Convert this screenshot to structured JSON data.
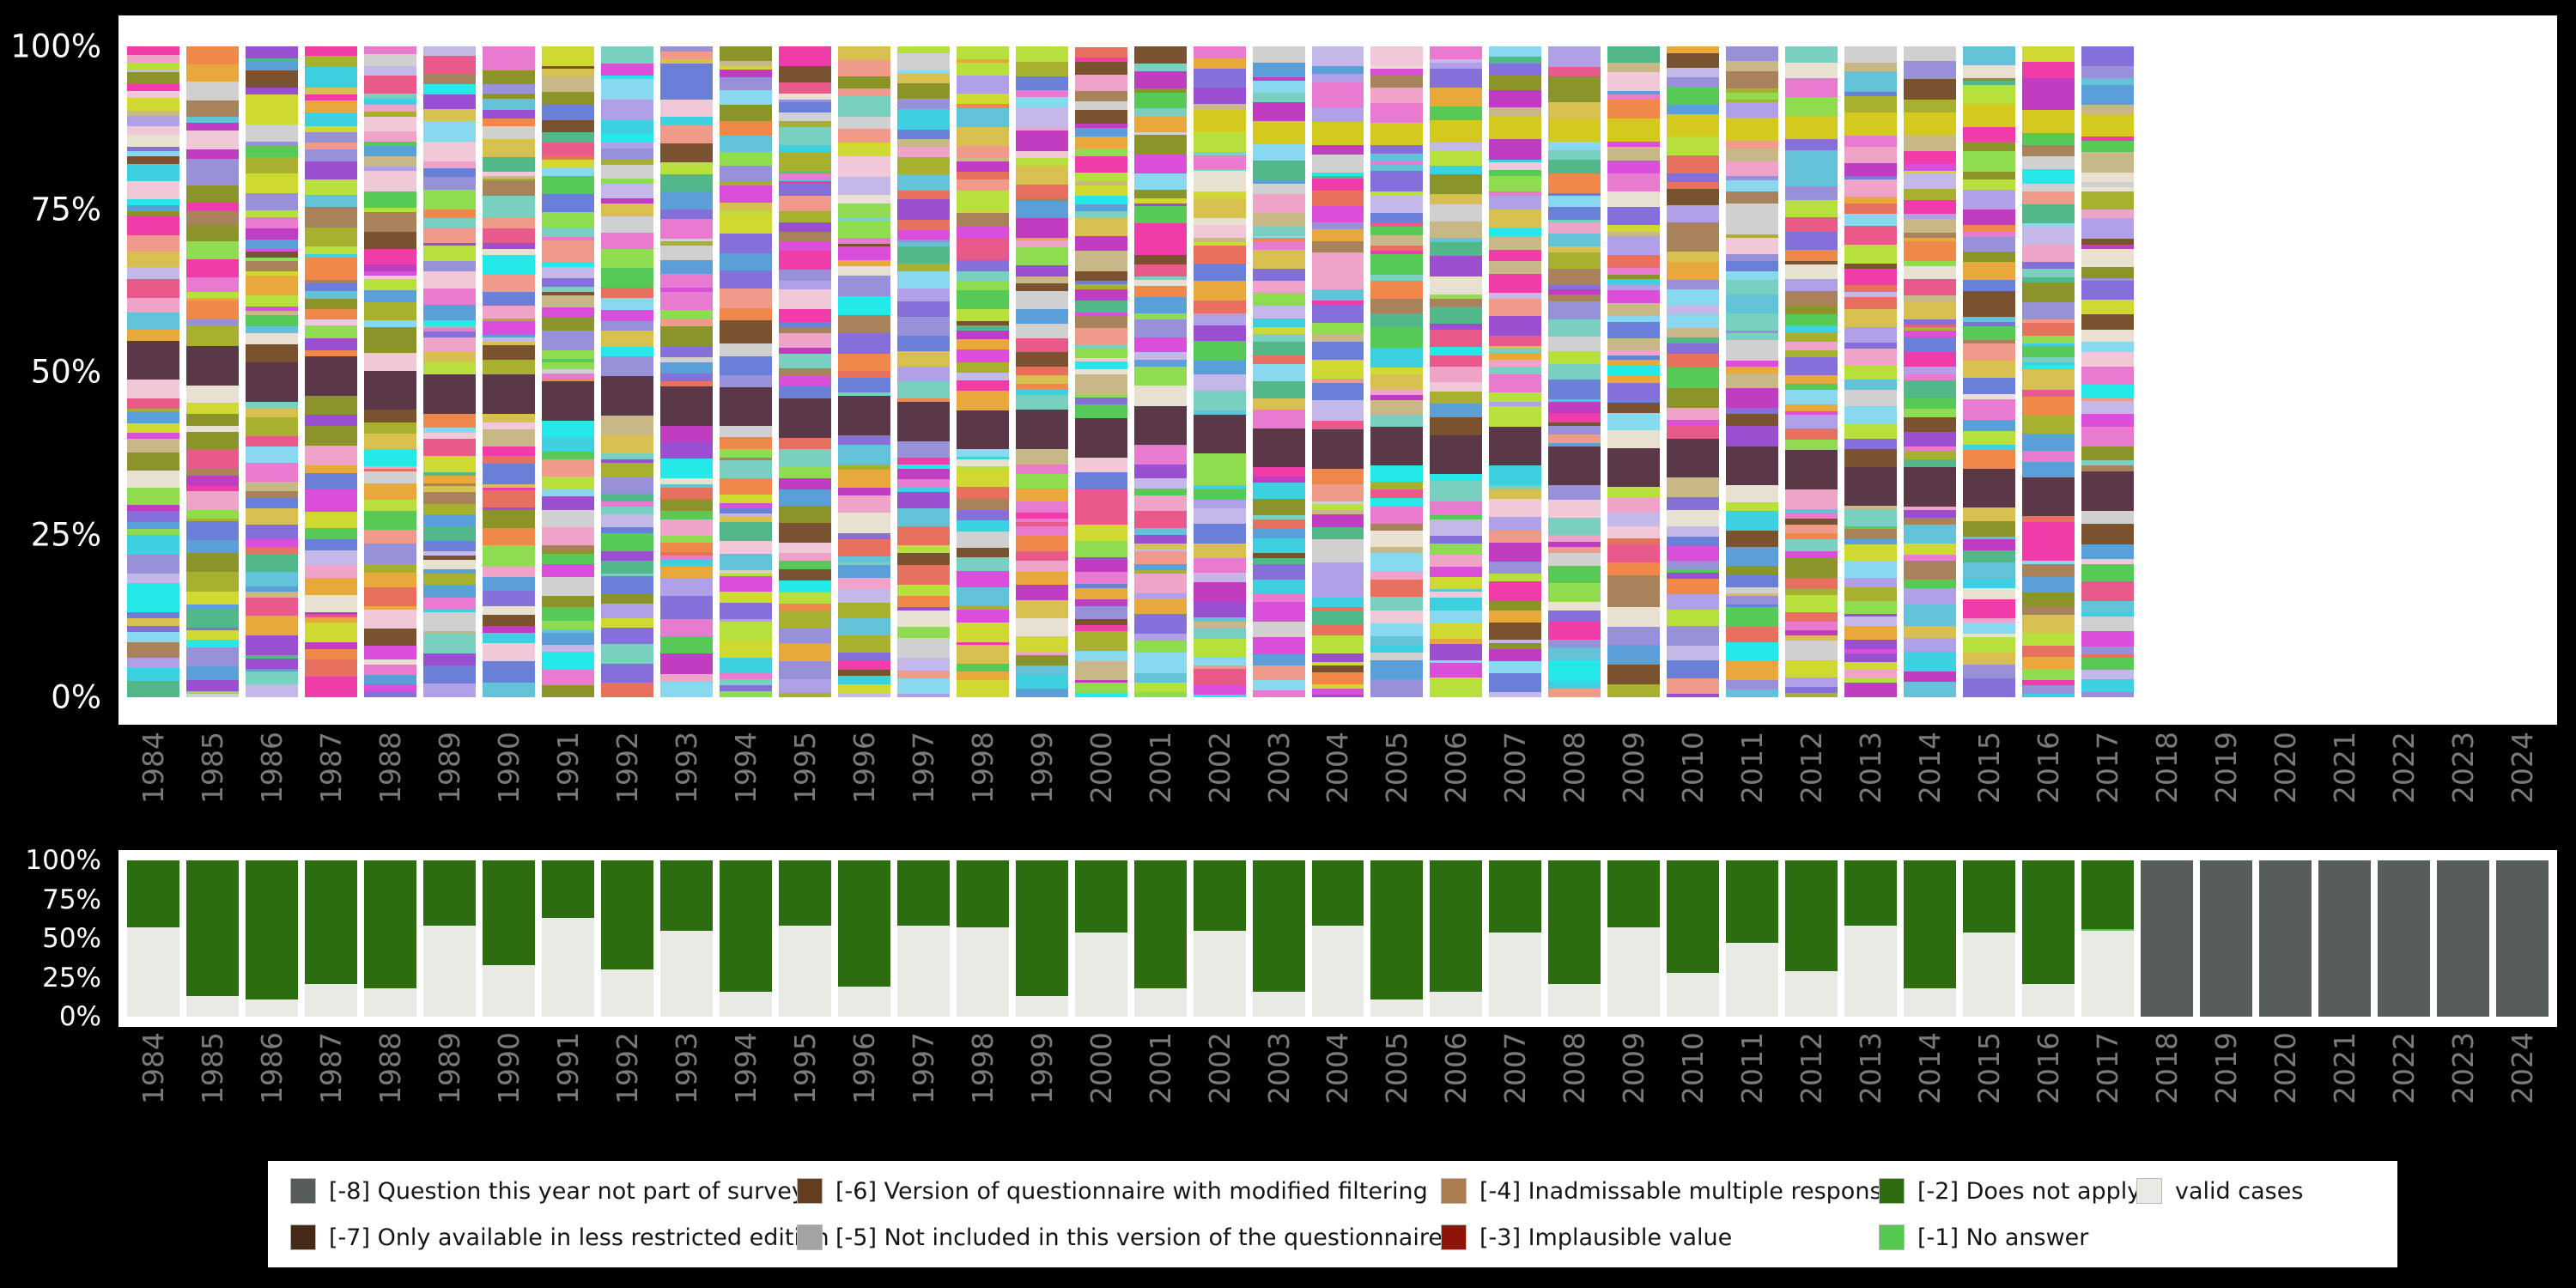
{
  "page": {
    "background": "#000000",
    "panel_background": "#ffffff"
  },
  "axes": {
    "years": [
      "1984",
      "1985",
      "1986",
      "1987",
      "1988",
      "1989",
      "1990",
      "1991",
      "1992",
      "1993",
      "1994",
      "1995",
      "1996",
      "1997",
      "1998",
      "1999",
      "2000",
      "2001",
      "2002",
      "2003",
      "2004",
      "2005",
      "2006",
      "2007",
      "2008",
      "2009",
      "2010",
      "2011",
      "2012",
      "2013",
      "2014",
      "2015",
      "2016",
      "2017",
      "2018",
      "2019",
      "2020",
      "2021",
      "2022",
      "2023",
      "2024"
    ],
    "y_ticks": [
      "100%",
      "75%",
      "50%",
      "25%",
      "0%"
    ],
    "tick_color": "#7a7a7a",
    "y_tick_color": "#ffffff"
  },
  "legend": {
    "items": [
      {
        "label": "[-8] Question this year not part of survey",
        "color": "#565d5b"
      },
      {
        "label": "[-6] Version of questionnaire with modified filtering",
        "color": "#653d1e"
      },
      {
        "label": "[-4] Inadmissable multiple response",
        "color": "#ad7d52"
      },
      {
        "label": "[-2] Does not apply",
        "color": "#2c6e0f"
      },
      {
        "label": "valid cases",
        "color": "#e9e9e6"
      },
      {
        "label": "[-7] Only available in less restricted edition",
        "color": "#47291a"
      },
      {
        "label": "[-5] Not included in this version of the questionnaire",
        "color": "#a3a3a3"
      },
      {
        "label": "[-3] Implausible value",
        "color": "#8e1408"
      },
      {
        "label": "[-1] No answer",
        "color": "#55c84f"
      }
    ]
  },
  "chart_data": {
    "type": "bar",
    "stacked": true,
    "ylim": [
      0,
      100
    ],
    "grid": false,
    "legend_position": "bottom",
    "panels": [
      {
        "name": "answer-category-distribution-by-year",
        "description": "Stacked percentage bars of all answer categories per survey year; many small category segments per bar",
        "year_start": 1984,
        "year_end": 2017,
        "seed": 20,
        "seg_min": 0.35,
        "seg_max": 3.2,
        "palette": [
          "#d94fd9",
          "#e87bd0",
          "#f0a3c8",
          "#c03cc0",
          "#9a4fd0",
          "#8470d8",
          "#b0a0e8",
          "#6a7fd8",
          "#5a9fd8",
          "#62c3d8",
          "#3cd0e0",
          "#25e8e8",
          "#7ad0c0",
          "#52b88a",
          "#57c957",
          "#8fdc50",
          "#b8e03c",
          "#d0d832",
          "#a8b030",
          "#8a9428",
          "#d8c050",
          "#e8a83c",
          "#f0884a",
          "#e8705f",
          "#f09a8a",
          "#e85a8a",
          "#f03ca8",
          "#d0d0d0",
          "#e8e0d0",
          "#c8b888",
          "#a8825a",
          "#7a5230",
          "#9890d8",
          "#c4b8e8",
          "#88d8f0",
          "#f0c8d8"
        ],
        "bands": [
          {
            "color": "#5a3847",
            "height": 6,
            "year_start": 1984,
            "year_end": 2017,
            "pos_start": 46,
            "pos_end": 27
          },
          {
            "color": "#d4ca1f",
            "height": 3.5,
            "year_start": 2002,
            "year_end": 2017,
            "pos_start": 84,
            "pos_end": 86
          }
        ]
      },
      {
        "name": "valid-vs-missing-by-year",
        "description": "Share of valid cases (light) vs [-2] Does not apply (dark green); [-8] full bar when question not part of survey",
        "colors": {
          "valid": "#e9e9e6",
          "does_not_apply": "#2c6e0f",
          "no_answer": "#55c84f",
          "not_surveyed": "#565d5b"
        },
        "values": [
          {
            "year": "1984",
            "valid": 57,
            "does_not_apply": 43,
            "no_answer": 0,
            "not_surveyed": false
          },
          {
            "year": "1985",
            "valid": 13,
            "does_not_apply": 87,
            "no_answer": 0,
            "not_surveyed": false
          },
          {
            "year": "1986",
            "valid": 11,
            "does_not_apply": 89,
            "no_answer": 0,
            "not_surveyed": false
          },
          {
            "year": "1987",
            "valid": 21,
            "does_not_apply": 79,
            "no_answer": 0,
            "not_surveyed": false
          },
          {
            "year": "1988",
            "valid": 18,
            "does_not_apply": 82,
            "no_answer": 0,
            "not_surveyed": false
          },
          {
            "year": "1989",
            "valid": 58,
            "does_not_apply": 42,
            "no_answer": 0,
            "not_surveyed": false
          },
          {
            "year": "1990",
            "valid": 33,
            "does_not_apply": 67,
            "no_answer": 0,
            "not_surveyed": false
          },
          {
            "year": "1991",
            "valid": 63,
            "does_not_apply": 37,
            "no_answer": 0,
            "not_surveyed": false
          },
          {
            "year": "1992",
            "valid": 30,
            "does_not_apply": 70,
            "no_answer": 0,
            "not_surveyed": false
          },
          {
            "year": "1993",
            "valid": 55,
            "does_not_apply": 45,
            "no_answer": 0,
            "not_surveyed": false
          },
          {
            "year": "1994",
            "valid": 16,
            "does_not_apply": 84,
            "no_answer": 0,
            "not_surveyed": false
          },
          {
            "year": "1995",
            "valid": 58,
            "does_not_apply": 42,
            "no_answer": 0,
            "not_surveyed": false
          },
          {
            "year": "1996",
            "valid": 19,
            "does_not_apply": 81,
            "no_answer": 0,
            "not_surveyed": false
          },
          {
            "year": "1997",
            "valid": 58,
            "does_not_apply": 42,
            "no_answer": 0,
            "not_surveyed": false
          },
          {
            "year": "1998",
            "valid": 57,
            "does_not_apply": 43,
            "no_answer": 0,
            "not_surveyed": false
          },
          {
            "year": "1999",
            "valid": 13,
            "does_not_apply": 87,
            "no_answer": 0,
            "not_surveyed": false
          },
          {
            "year": "2000",
            "valid": 54,
            "does_not_apply": 46,
            "no_answer": 0,
            "not_surveyed": false
          },
          {
            "year": "2001",
            "valid": 18,
            "does_not_apply": 82,
            "no_answer": 0,
            "not_surveyed": false
          },
          {
            "year": "2002",
            "valid": 55,
            "does_not_apply": 45,
            "no_answer": 0,
            "not_surveyed": false
          },
          {
            "year": "2003",
            "valid": 16,
            "does_not_apply": 84,
            "no_answer": 0,
            "not_surveyed": false
          },
          {
            "year": "2004",
            "valid": 58,
            "does_not_apply": 42,
            "no_answer": 0,
            "not_surveyed": false
          },
          {
            "year": "2005",
            "valid": 11,
            "does_not_apply": 89,
            "no_answer": 0,
            "not_surveyed": false
          },
          {
            "year": "2006",
            "valid": 16,
            "does_not_apply": 84,
            "no_answer": 0,
            "not_surveyed": false
          },
          {
            "year": "2007",
            "valid": 54,
            "does_not_apply": 46,
            "no_answer": 0,
            "not_surveyed": false
          },
          {
            "year": "2008",
            "valid": 21,
            "does_not_apply": 79,
            "no_answer": 0,
            "not_surveyed": false
          },
          {
            "year": "2009",
            "valid": 57,
            "does_not_apply": 43,
            "no_answer": 0,
            "not_surveyed": false
          },
          {
            "year": "2010",
            "valid": 28,
            "does_not_apply": 72,
            "no_answer": 0,
            "not_surveyed": false
          },
          {
            "year": "2011",
            "valid": 47,
            "does_not_apply": 53,
            "no_answer": 0,
            "not_surveyed": false
          },
          {
            "year": "2012",
            "valid": 29,
            "does_not_apply": 71,
            "no_answer": 0,
            "not_surveyed": false
          },
          {
            "year": "2013",
            "valid": 58,
            "does_not_apply": 42,
            "no_answer": 0,
            "not_surveyed": false
          },
          {
            "year": "2014",
            "valid": 18,
            "does_not_apply": 82,
            "no_answer": 0,
            "not_surveyed": false
          },
          {
            "year": "2015",
            "valid": 54,
            "does_not_apply": 46,
            "no_answer": 0,
            "not_surveyed": false
          },
          {
            "year": "2016",
            "valid": 21,
            "does_not_apply": 79,
            "no_answer": 0,
            "not_surveyed": false
          },
          {
            "year": "2017",
            "valid": 55,
            "does_not_apply": 44,
            "no_answer": 1,
            "not_surveyed": false
          },
          {
            "year": "2018",
            "valid": 0,
            "does_not_apply": 0,
            "no_answer": 0,
            "not_surveyed": true
          },
          {
            "year": "2019",
            "valid": 0,
            "does_not_apply": 0,
            "no_answer": 0,
            "not_surveyed": true
          },
          {
            "year": "2020",
            "valid": 0,
            "does_not_apply": 0,
            "no_answer": 0,
            "not_surveyed": true
          },
          {
            "year": "2021",
            "valid": 0,
            "does_not_apply": 0,
            "no_answer": 0,
            "not_surveyed": true
          },
          {
            "year": "2022",
            "valid": 0,
            "does_not_apply": 0,
            "no_answer": 0,
            "not_surveyed": true
          },
          {
            "year": "2023",
            "valid": 0,
            "does_not_apply": 0,
            "no_answer": 0,
            "not_surveyed": true
          },
          {
            "year": "2024",
            "valid": 0,
            "does_not_apply": 0,
            "no_answer": 0,
            "not_surveyed": true
          }
        ]
      }
    ]
  }
}
